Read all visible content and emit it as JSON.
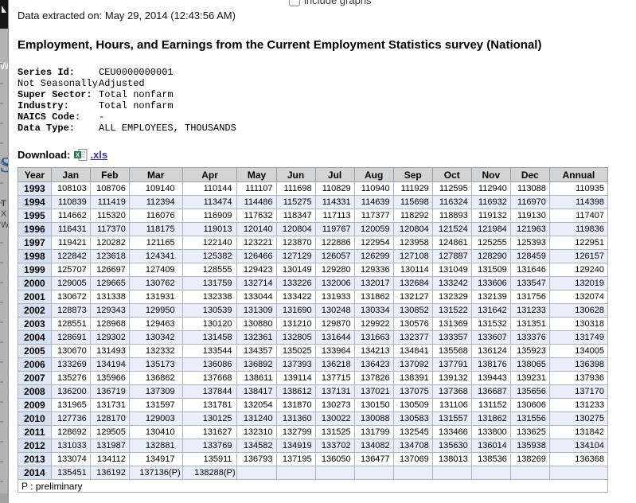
{
  "overlay": {
    "include_graphs_label": "include graphs"
  },
  "header": {
    "extracted_label": "Data extracted on:",
    "extracted_value": "May 29, 2014 (12:43:56 AM)",
    "title": "Employment, Hours, and Earnings from the Current Employment Statistics survey (National)"
  },
  "series_info": [
    {
      "label": "Series Id:",
      "value": "CEU0000000001",
      "bold_label": true
    },
    {
      "label": "Not Seasonally",
      "value": "Adjusted",
      "bold_label": false
    },
    {
      "label": "Super Sector:",
      "value": "Total nonfarm",
      "bold_label": true
    },
    {
      "label": "Industry:",
      "value": "Total nonfarm",
      "bold_label": true
    },
    {
      "label": "NAICS Code:",
      "value": "-",
      "bold_label": true
    },
    {
      "label": "Data Type:",
      "value": "ALL EMPLOYEES, THOUSANDS",
      "bold_label": true
    }
  ],
  "download": {
    "label": "Download:",
    "link_text": ".xls",
    "icon": "excel-file-icon"
  },
  "table": {
    "columns": [
      "Year",
      "Jan",
      "Feb",
      "Mar",
      "Apr",
      "May",
      "Jun",
      "Jul",
      "Aug",
      "Sep",
      "Oct",
      "Nov",
      "Dec",
      "Annual"
    ],
    "rows": [
      {
        "year": "1993",
        "values": [
          "108103",
          "108706",
          "109140",
          "110144",
          "111107",
          "111698",
          "110829",
          "110940",
          "111929",
          "112595",
          "112940",
          "113088",
          "110935"
        ]
      },
      {
        "year": "1994",
        "values": [
          "110839",
          "111419",
          "112394",
          "113474",
          "114486",
          "115275",
          "114331",
          "114639",
          "115698",
          "116324",
          "116932",
          "116970",
          "114398"
        ]
      },
      {
        "year": "1995",
        "values": [
          "114662",
          "115320",
          "116076",
          "116909",
          "117632",
          "118347",
          "117113",
          "117377",
          "118292",
          "118893",
          "119132",
          "119130",
          "117407"
        ]
      },
      {
        "year": "1996",
        "values": [
          "116431",
          "117370",
          "118175",
          "119013",
          "120140",
          "120804",
          "119767",
          "120059",
          "120804",
          "121524",
          "121984",
          "121963",
          "119836"
        ]
      },
      {
        "year": "1997",
        "values": [
          "119421",
          "120282",
          "121165",
          "122140",
          "123221",
          "123870",
          "122886",
          "122954",
          "123958",
          "124861",
          "125255",
          "125393",
          "122951"
        ]
      },
      {
        "year": "1998",
        "values": [
          "122842",
          "123618",
          "124341",
          "125382",
          "126466",
          "127129",
          "126057",
          "126299",
          "127108",
          "127887",
          "128290",
          "128459",
          "126157"
        ]
      },
      {
        "year": "1999",
        "values": [
          "125707",
          "126697",
          "127409",
          "128555",
          "129423",
          "130149",
          "129280",
          "129336",
          "130114",
          "131049",
          "131509",
          "131646",
          "129240"
        ]
      },
      {
        "year": "2000",
        "values": [
          "129005",
          "129665",
          "130762",
          "131759",
          "132714",
          "133226",
          "132006",
          "132017",
          "132684",
          "133242",
          "133606",
          "133547",
          "132019"
        ]
      },
      {
        "year": "2001",
        "values": [
          "130672",
          "131338",
          "131931",
          "132338",
          "133044",
          "133422",
          "131933",
          "131862",
          "132127",
          "132329",
          "132139",
          "131756",
          "132074"
        ]
      },
      {
        "year": "2002",
        "values": [
          "128873",
          "129343",
          "129950",
          "130539",
          "131309",
          "131690",
          "130248",
          "130334",
          "130852",
          "131522",
          "131642",
          "131233",
          "130628"
        ]
      },
      {
        "year": "2003",
        "values": [
          "128551",
          "128968",
          "129463",
          "130120",
          "130880",
          "131210",
          "129870",
          "129922",
          "130576",
          "131369",
          "131532",
          "131351",
          "130318"
        ]
      },
      {
        "year": "2004",
        "values": [
          "128691",
          "129302",
          "130342",
          "131458",
          "132361",
          "132805",
          "131644",
          "131663",
          "132377",
          "133357",
          "133607",
          "133376",
          "131749"
        ]
      },
      {
        "year": "2005",
        "values": [
          "130670",
          "131493",
          "132332",
          "133544",
          "134357",
          "135025",
          "133964",
          "134213",
          "134841",
          "135568",
          "136124",
          "135923",
          "134005"
        ]
      },
      {
        "year": "2006",
        "values": [
          "133269",
          "134194",
          "135173",
          "136086",
          "136892",
          "137393",
          "136218",
          "136423",
          "137092",
          "137791",
          "138176",
          "138065",
          "136398"
        ]
      },
      {
        "year": "2007",
        "values": [
          "135276",
          "135966",
          "136862",
          "137668",
          "138611",
          "139114",
          "137715",
          "137826",
          "138391",
          "139132",
          "139443",
          "139231",
          "137936"
        ]
      },
      {
        "year": "2008",
        "values": [
          "136200",
          "136719",
          "137309",
          "137844",
          "138417",
          "138612",
          "137131",
          "137021",
          "137075",
          "137368",
          "136687",
          "135656",
          "137170"
        ]
      },
      {
        "year": "2009",
        "values": [
          "131965",
          "131731",
          "131597",
          "131781",
          "132054",
          "131870",
          "130273",
          "130150",
          "130509",
          "131106",
          "131152",
          "130606",
          "131233"
        ]
      },
      {
        "year": "2010",
        "values": [
          "127736",
          "128170",
          "129003",
          "130125",
          "131240",
          "131360",
          "130022",
          "130088",
          "130583",
          "131557",
          "131862",
          "131556",
          "130275"
        ]
      },
      {
        "year": "2011",
        "values": [
          "128692",
          "129505",
          "130410",
          "131627",
          "132310",
          "132799",
          "131525",
          "131799",
          "132545",
          "133466",
          "133800",
          "133625",
          "131842"
        ]
      },
      {
        "year": "2012",
        "values": [
          "131033",
          "131987",
          "132881",
          "133769",
          "134582",
          "134919",
          "133702",
          "134082",
          "134708",
          "135630",
          "136014",
          "135938",
          "134104"
        ]
      },
      {
        "year": "2013",
        "values": [
          "133074",
          "134112",
          "134917",
          "135911",
          "136793",
          "137195",
          "136050",
          "136477",
          "137069",
          "138013",
          "138536",
          "138269",
          "136368"
        ]
      },
      {
        "year": "2014",
        "values": [
          "135451",
          "136192",
          "137136(P)",
          "138288(P)",
          "",
          "",
          "",
          "",
          "",
          "",
          "",
          "",
          ""
        ]
      }
    ],
    "footnote": "P : preliminary"
  },
  "background": {
    "fragments": [
      "W",
      "S",
      "T",
      "X",
      "W"
    ]
  },
  "colors": {
    "link_blue": "#3333aa",
    "header_gray": "#d4d4d4",
    "row_alt_blue": "#e9eef8",
    "year_col_blue": "#e0e8f4",
    "year_col_blue_alt": "#d5e0f0",
    "table_border": "#767676",
    "grid_line": "#aeb4bd",
    "strip_gray": "#b3b3b3",
    "fragment_blue": "#2d5f9b",
    "excel_green": "#1c7a43"
  }
}
